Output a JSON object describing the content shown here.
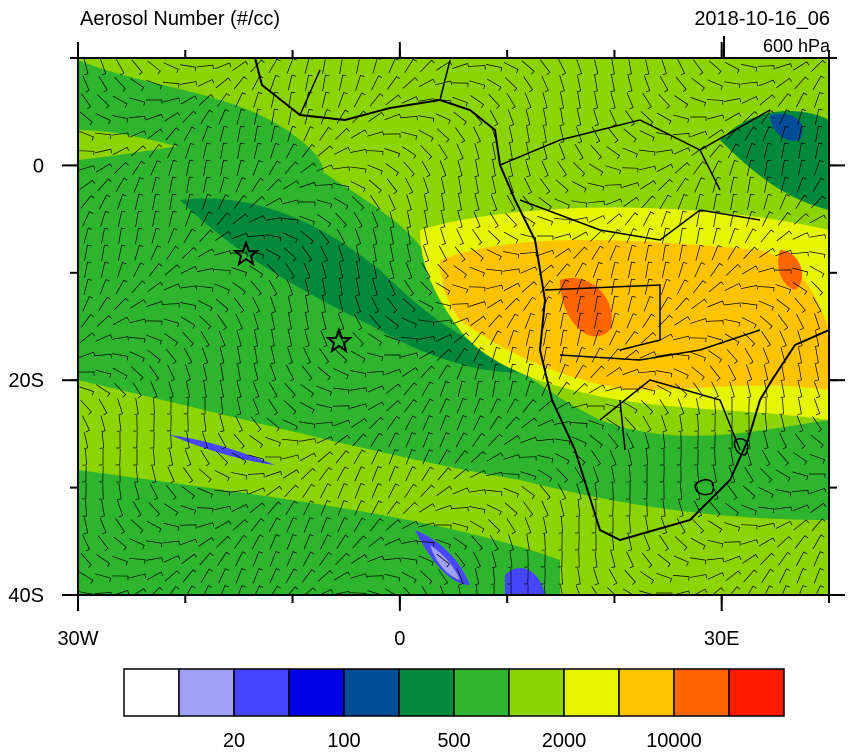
{
  "header": {
    "title": "Aerosol Number (#/cc)",
    "timestamp": "2018-10-16_06",
    "level": "600 hPa"
  },
  "axes": {
    "xlim": [
      -30,
      40
    ],
    "ylim": [
      -40,
      10
    ],
    "xticks": [
      {
        "value": -30,
        "label": "30W"
      },
      0,
      {
        "value": 30,
        "label": "30E"
      }
    ],
    "yticks": [
      0,
      {
        "value": -20,
        "label": "20S"
      },
      {
        "value": -40,
        "label": "40S"
      }
    ]
  },
  "colorbar": {
    "colors": [
      "#ffffff",
      "#a0a0f5",
      "#4646ff",
      "#0000e6",
      "#004c96",
      "#00883c",
      "#2eb42e",
      "#8cd400",
      "#e6f500",
      "#ffc300",
      "#ff6600",
      "#ff1a00"
    ],
    "labels": [
      20,
      100,
      500,
      2000,
      10000
    ]
  }
}
